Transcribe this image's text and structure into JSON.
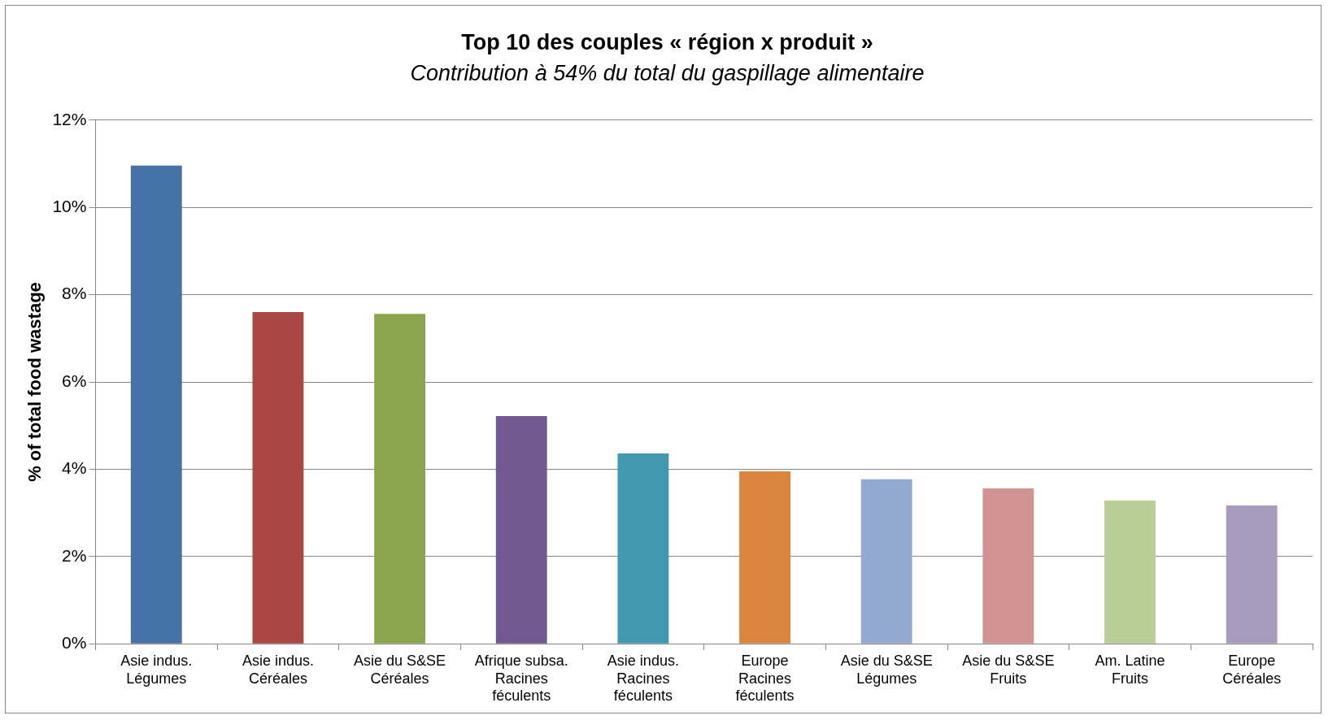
{
  "chart_data": {
    "type": "bar",
    "title": "Top 10 des couples « région x produit »",
    "subtitle": "Contribution à 54% du total du gaspillage alimentaire",
    "ylabel": "% of total food wastage",
    "categories": [
      "Asie indus.\nLégumes",
      "Asie indus.\nCéréales",
      "Asie du S&SE\nCéréales",
      "Afrique subsa.\nRacines\nféculents",
      "Asie indus.\nRacines\nféculents",
      "Europe\nRacines\nféculents",
      "Asie du S&SE\nLégumes",
      "Asie du S&SE\nFruits",
      "Am. Latine\nFruits",
      "Europe\nCéréales"
    ],
    "values": [
      10.96,
      7.6,
      7.56,
      5.22,
      4.36,
      3.95,
      3.77,
      3.56,
      3.28,
      3.17
    ],
    "colors": [
      "#4572a7",
      "#aa4643",
      "#89a54e",
      "#71588f",
      "#4198af",
      "#db843d",
      "#93a9cf",
      "#d19392",
      "#b9cd96",
      "#a99bbd"
    ],
    "ylim": [
      0,
      12
    ],
    "yticks": [
      {
        "value": 0,
        "label": "0%"
      },
      {
        "value": 2,
        "label": "2%"
      },
      {
        "value": 4,
        "label": "4%"
      },
      {
        "value": 6,
        "label": "6%"
      },
      {
        "value": 8,
        "label": "8%"
      },
      {
        "value": 10,
        "label": "10%"
      },
      {
        "value": 12,
        "label": "12%"
      }
    ],
    "grid": "y",
    "legend": false
  }
}
